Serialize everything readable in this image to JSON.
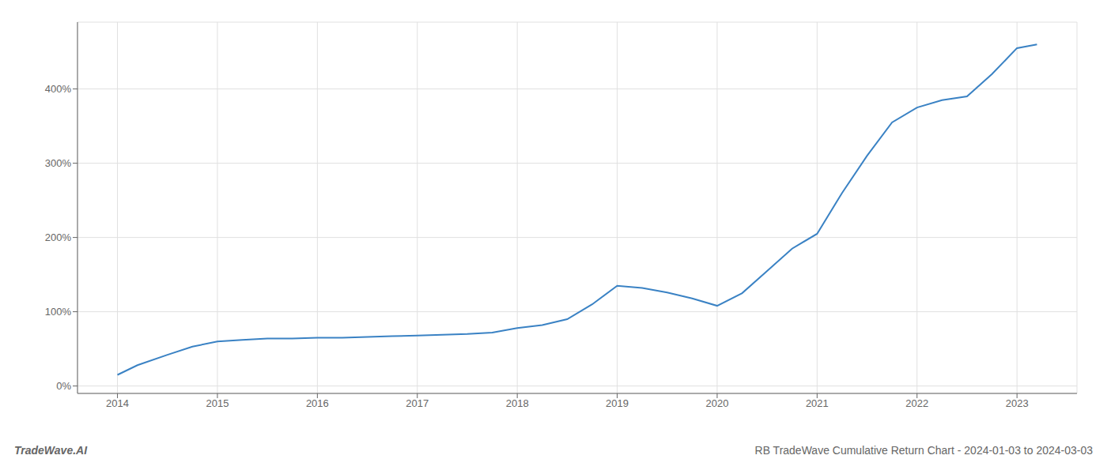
{
  "chart_data": {
    "type": "line",
    "title": "RB TradeWave Cumulative Return Chart - 2024-01-03 to 2024-03-03",
    "annotations": [
      "TradeWave.AI"
    ],
    "x": [
      2014.0,
      2014.2,
      2014.5,
      2014.75,
      2015.0,
      2015.25,
      2015.5,
      2015.75,
      2016.0,
      2016.25,
      2016.5,
      2016.75,
      2017.0,
      2017.25,
      2017.5,
      2017.75,
      2018.0,
      2018.25,
      2018.5,
      2018.75,
      2019.0,
      2019.25,
      2019.5,
      2019.75,
      2020.0,
      2020.25,
      2020.5,
      2020.75,
      2021.0,
      2021.25,
      2021.5,
      2021.75,
      2022.0,
      2022.25,
      2022.5,
      2022.75,
      2023.0,
      2023.2
    ],
    "values": [
      15,
      28,
      42,
      53,
      60,
      62,
      64,
      64,
      65,
      65,
      66,
      67,
      68,
      69,
      70,
      72,
      78,
      82,
      90,
      110,
      135,
      132,
      126,
      118,
      108,
      125,
      155,
      185,
      205,
      260,
      310,
      355,
      375,
      385,
      390,
      420,
      455,
      460
    ],
    "color": "#3a82c4",
    "xlim": [
      2013.6,
      2023.6
    ],
    "ylim": [
      -10,
      490
    ],
    "xticks": [
      2014,
      2015,
      2016,
      2017,
      2018,
      2019,
      2020,
      2021,
      2022,
      2023
    ],
    "yticks": [
      {
        "value": 0,
        "label": "0%"
      },
      {
        "value": 100,
        "label": "100%"
      },
      {
        "value": 200,
        "label": "200%"
      },
      {
        "value": 300,
        "label": "300%"
      },
      {
        "value": 400,
        "label": "400%"
      }
    ],
    "grid": true
  }
}
